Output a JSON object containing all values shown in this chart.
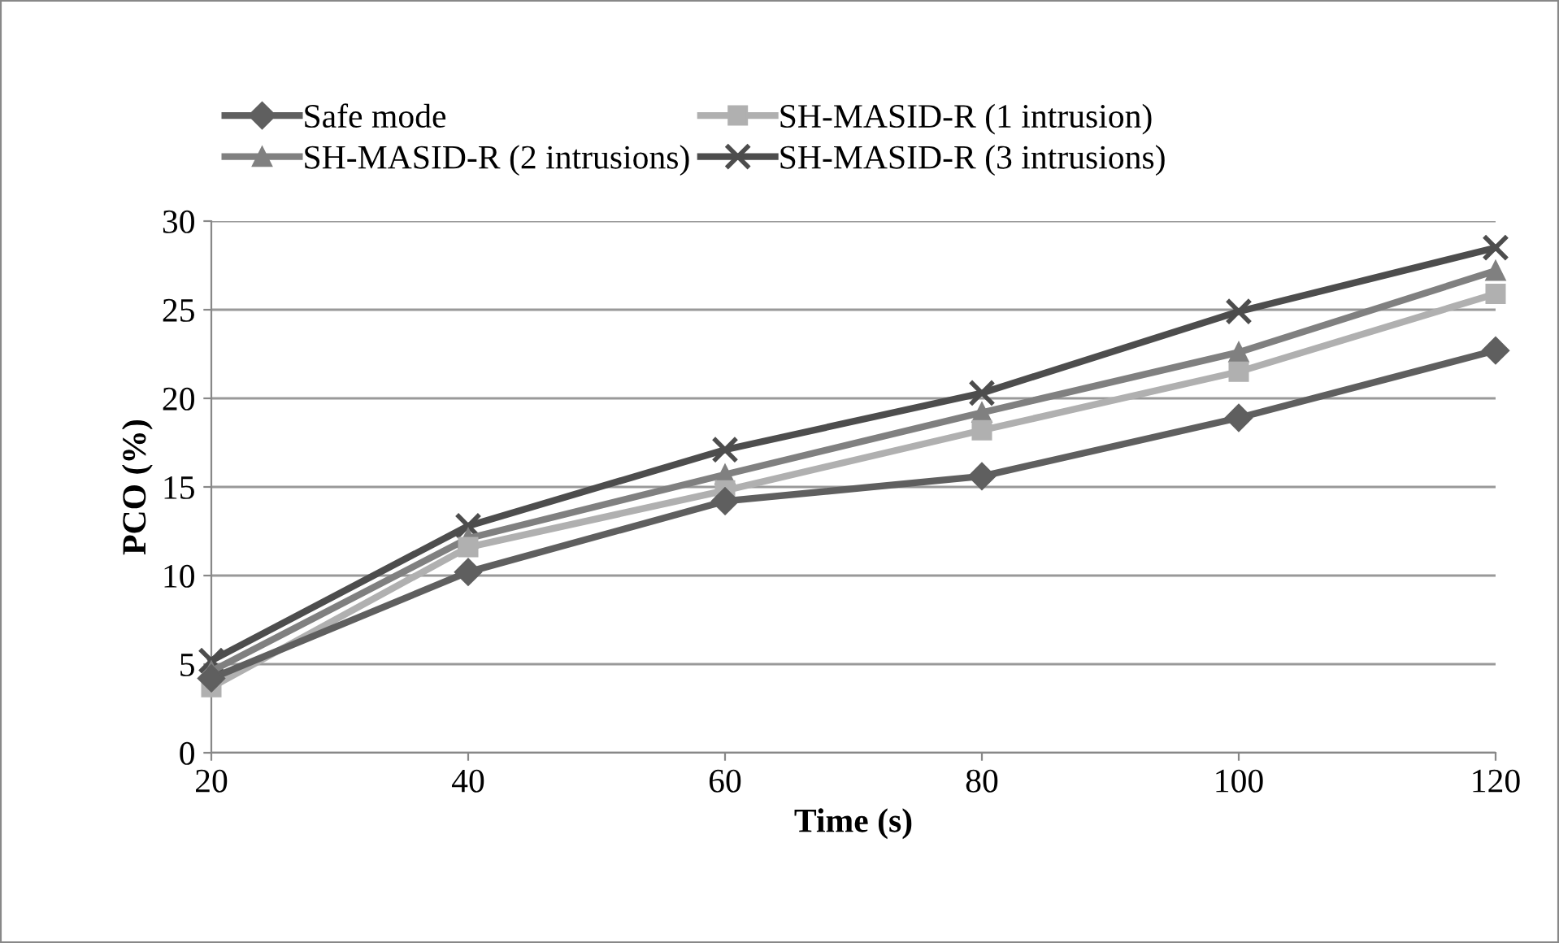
{
  "chart_data": {
    "type": "line",
    "xlabel": "Time (s)",
    "ylabel": "PCO (%)",
    "x": [
      20,
      40,
      60,
      80,
      100,
      120
    ],
    "xlim": [
      20,
      120
    ],
    "xticks": [
      20,
      40,
      60,
      80,
      100,
      120
    ],
    "ylim": [
      0,
      30
    ],
    "yticks": [
      0,
      5,
      10,
      15,
      20,
      25,
      30
    ],
    "grid": "y",
    "legend": "top",
    "series": [
      {
        "name": "Safe mode",
        "color": "#5f5f5f",
        "marker": "diamond",
        "values": [
          4.2,
          10.2,
          14.2,
          15.6,
          18.9,
          22.7
        ]
      },
      {
        "name": "SH-MASID-R (1 intrusion)",
        "color": "#b0b0b0",
        "marker": "square",
        "values": [
          3.7,
          11.6,
          14.8,
          18.2,
          21.5,
          25.9
        ]
      },
      {
        "name": "SH-MASID-R (2 intrusions)",
        "color": "#808080",
        "marker": "triangle",
        "values": [
          4.6,
          12.1,
          15.7,
          19.2,
          22.6,
          27.2
        ]
      },
      {
        "name": "SH-MASID-R (3 intrusions)",
        "color": "#4d4d4d",
        "marker": "cross",
        "values": [
          5.2,
          12.8,
          17.1,
          20.3,
          24.9,
          28.5
        ]
      }
    ]
  }
}
